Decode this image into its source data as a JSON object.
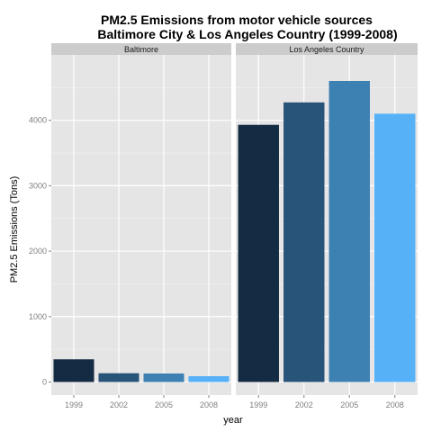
{
  "chart_data": {
    "type": "bar",
    "title_line1": "PM2.5 Emissions from motor vehicle sources",
    "title_line2": "Baltimore City & Los Angeles Country (1999-2008)",
    "xlabel": "year",
    "ylabel": "PM2.5 Emissions (Tons)",
    "categories": [
      "1999",
      "2002",
      "2005",
      "2008"
    ],
    "ylim": [
      -200,
      5000
    ],
    "yticks": [
      0,
      1000,
      2000,
      3000,
      4000
    ],
    "grid": true,
    "bar_colors": [
      "#132b43",
      "#28547a",
      "#3d80b2",
      "#56b1f7"
    ],
    "panel_background": "#e5e5e5",
    "strip_background": "#cccccc",
    "panels": [
      {
        "label": "Baltimore",
        "values": [
          347,
          134,
          130,
          89
        ]
      },
      {
        "label": "Los Angeles Country",
        "values": [
          3931,
          4274,
          4601,
          4101
        ]
      }
    ]
  }
}
